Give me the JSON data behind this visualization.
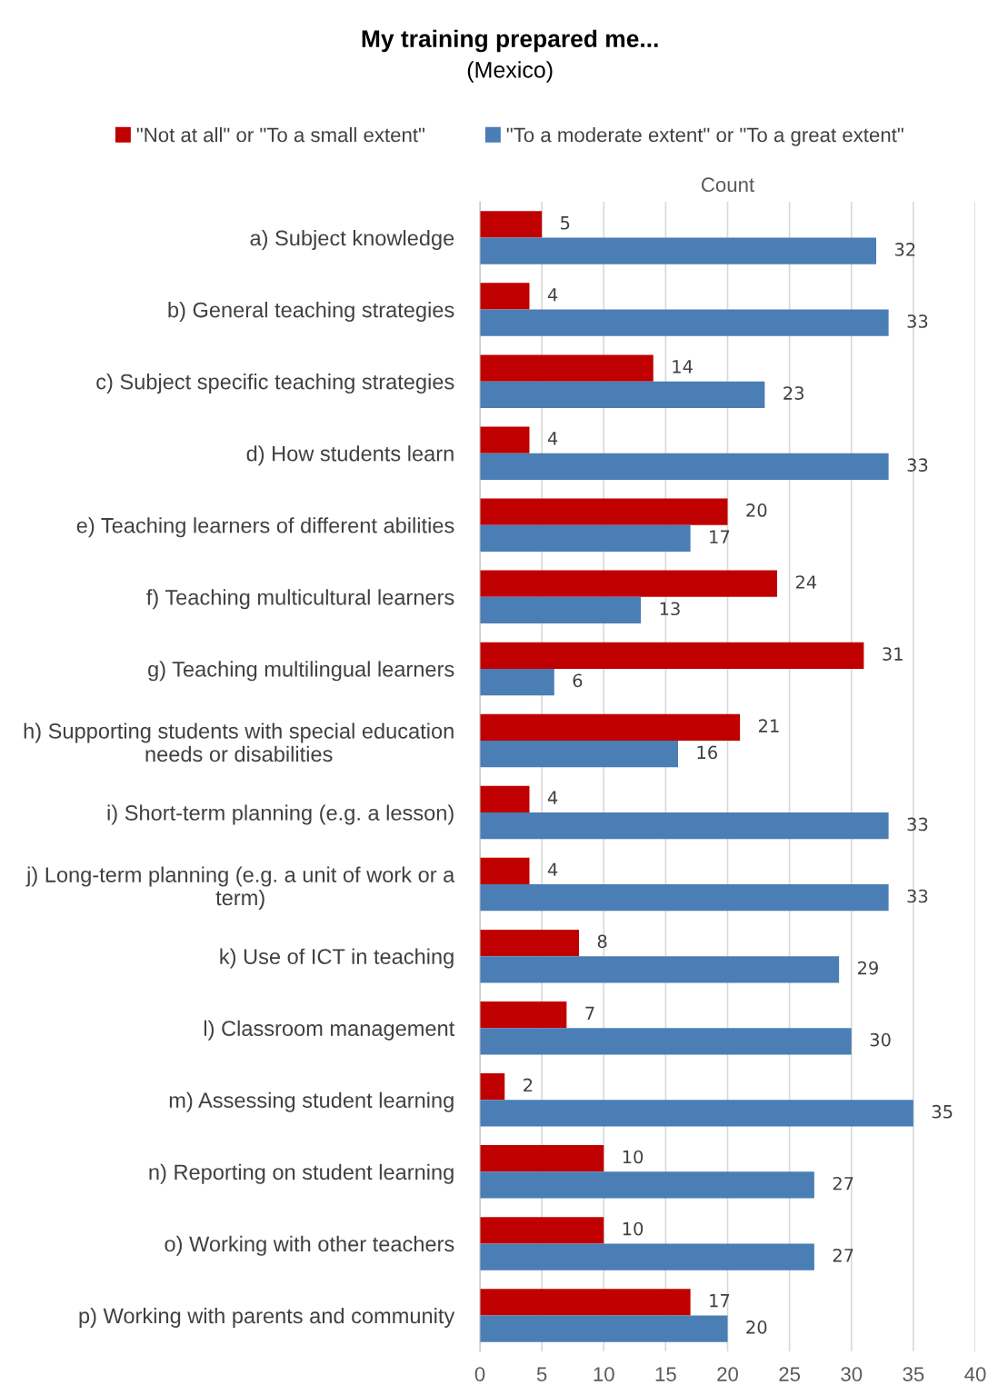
{
  "chart_data": {
    "type": "bar",
    "orientation": "horizontal",
    "title": "My training prepared me...",
    "subtitle": "(Mexico)",
    "xlabel": "Count",
    "categories": [
      "a) Subject knowledge",
      "b) General teaching strategies",
      "c) Subject specific teaching strategies",
      "d) How students learn",
      "e) Teaching learners of different abilities",
      "f) Teaching multicultural learners",
      "g) Teaching multilingual learners",
      "h) Supporting students with special education\nneeds or disabilities",
      "i) Short-term planning (e.g. a lesson)",
      "j) Long-term planning (e.g. a unit of work or a\nterm)",
      "k) Use of ICT in teaching",
      "l) Classroom management",
      "m) Assessing student learning",
      "n) Reporting on student learning",
      "o) Working with other teachers",
      "p) Working with parents and community"
    ],
    "series": [
      {
        "name": "\"Not at all\" or \"To a small extent\"",
        "color": "#c00000",
        "values": [
          5,
          4,
          14,
          4,
          20,
          24,
          31,
          21,
          4,
          4,
          8,
          7,
          2,
          10,
          10,
          17
        ]
      },
      {
        "name": "\"To a moderate extent\" or \"To a great extent\"",
        "color": "#4a7eb5",
        "values": [
          32,
          33,
          23,
          33,
          17,
          13,
          6,
          16,
          33,
          33,
          29,
          30,
          35,
          27,
          27,
          20
        ]
      }
    ],
    "xlim": [
      0,
      40
    ],
    "xticks": [
      0,
      5,
      10,
      15,
      20,
      25,
      30,
      35,
      40
    ],
    "grid": "x",
    "legend": "top",
    "data_labels": true
  }
}
